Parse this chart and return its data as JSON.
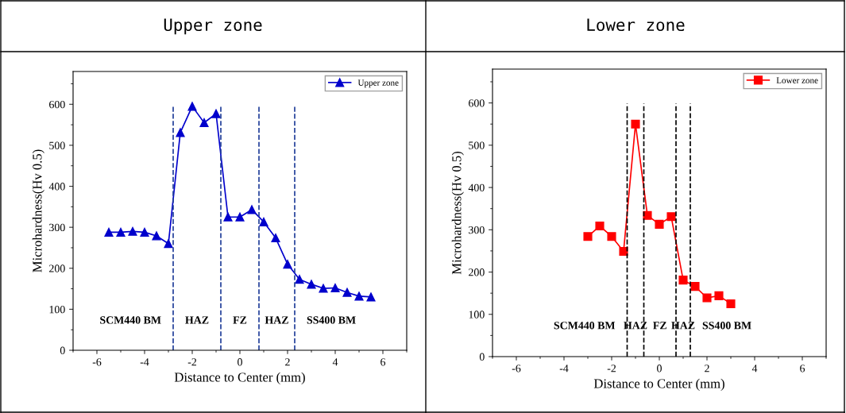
{
  "chart_data": [
    {
      "type": "line",
      "title": "Upper zone",
      "xlabel": "Distance to Center (mm)",
      "ylabel": "Microhardness(Hv 0.5)",
      "x": [
        -5.5,
        -5,
        -4.5,
        -4,
        -3.5,
        -3,
        -2.5,
        -2,
        -1.5,
        -1,
        -0.5,
        0,
        0.5,
        1,
        1.5,
        2,
        2.5,
        3,
        3.5,
        4,
        4.5,
        5,
        5.5
      ],
      "series": [
        {
          "name": "Upper zone",
          "color": "#0000cc",
          "values": [
            288,
            288,
            290,
            288,
            279,
            260,
            531,
            595,
            555,
            577,
            325,
            325,
            343,
            313,
            274,
            210,
            173,
            161,
            151,
            152,
            141,
            132,
            130
          ]
        }
      ],
      "marker": "triangle",
      "line_style": "solid",
      "legend": "top right",
      "grid": false,
      "xlim": [
        -7,
        7
      ],
      "xticks": [
        -6,
        -4,
        -2,
        0,
        2,
        4,
        6
      ],
      "ylim": [
        0,
        680
      ],
      "yticks": [
        0,
        100,
        200,
        300,
        400,
        500,
        600
      ],
      "ref_lines": [
        {
          "axis": "x",
          "value": -2.8,
          "color": "#1f3d99",
          "line_style": "dashed"
        },
        {
          "axis": "x",
          "value": -0.8,
          "color": "#1f3d99",
          "line_style": "dashed"
        },
        {
          "axis": "x",
          "value": 0.8,
          "color": "#1f3d99",
          "line_style": "dashed"
        },
        {
          "axis": "x",
          "value": 2.3,
          "color": "#1f3d99",
          "line_style": "dashed"
        }
      ],
      "annotations": [
        "SCM440 BM",
        "HAZ",
        "FZ",
        "HAZ",
        "SS400 BM"
      ]
    },
    {
      "type": "line",
      "title": "Lower zone",
      "xlabel": "Distance to Center (mm)",
      "ylabel": "Microhardness(Hv 0.5)",
      "x": [
        -3,
        -2.5,
        -2,
        -1.5,
        -1,
        -0.5,
        0,
        0.5,
        1,
        1.5,
        2,
        2.5,
        3
      ],
      "series": [
        {
          "name": "Lower zone",
          "color": "#ff0000",
          "values": [
            284,
            309,
            284,
            249,
            550,
            334,
            313,
            331,
            181,
            166,
            139,
            144,
            125
          ]
        }
      ],
      "marker": "square",
      "line_style": "solid",
      "legend": "top right",
      "grid": false,
      "xlim": [
        -7,
        7
      ],
      "xticks": [
        -6,
        -4,
        -2,
        0,
        2,
        4,
        6
      ],
      "ylim": [
        0,
        680
      ],
      "yticks": [
        0,
        100,
        200,
        300,
        400,
        500,
        600
      ],
      "ref_lines": [
        {
          "axis": "x",
          "value": -1.35,
          "color": "#000000",
          "line_style": "dashed"
        },
        {
          "axis": "x",
          "value": -0.65,
          "color": "#000000",
          "line_style": "dashed"
        },
        {
          "axis": "x",
          "value": 0.7,
          "color": "#000000",
          "line_style": "dashed"
        },
        {
          "axis": "x",
          "value": 1.3,
          "color": "#000000",
          "line_style": "dashed"
        }
      ],
      "annotations": [
        "SCM440 BM",
        "HAZ",
        "FZ",
        "HAZ",
        "SS400 BM"
      ]
    }
  ]
}
